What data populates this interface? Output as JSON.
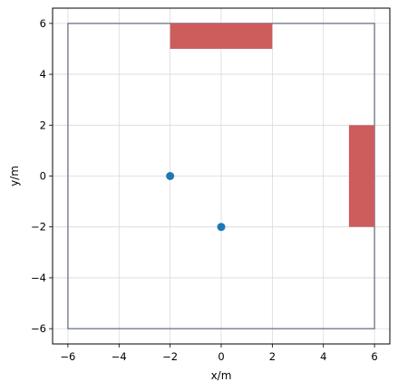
{
  "chart_data": {
    "type": "scatter",
    "title": "",
    "xlabel": "x/m",
    "ylabel": "y/m",
    "xlim": [
      -6.6,
      6.6
    ],
    "ylim": [
      -6.6,
      6.6
    ],
    "xticks": [
      -6,
      -4,
      -2,
      0,
      2,
      4,
      6
    ],
    "yticks": [
      -6,
      -4,
      -2,
      0,
      2,
      4,
      6
    ],
    "xtick_labels": [
      "−6",
      "−4",
      "−2",
      "0",
      "2",
      "4",
      "6"
    ],
    "ytick_labels": [
      "−6",
      "−4",
      "−2",
      "0",
      "2",
      "4",
      "6"
    ],
    "grid": true,
    "boundary": {
      "x0": -6,
      "y0": -6,
      "x1": 6,
      "y1": 6,
      "color": "#6b7185"
    },
    "obstacles": [
      {
        "x0": -2,
        "y0": 5,
        "x1": 2,
        "y1": 6
      },
      {
        "x0": 5,
        "y0": -2,
        "x1": 6,
        "y1": 2
      }
    ],
    "obstacle_color": "#cd5c5c",
    "points": [
      {
        "x": -2,
        "y": 0
      },
      {
        "x": 0,
        "y": -2
      }
    ],
    "point_color": "#1f77b4"
  }
}
